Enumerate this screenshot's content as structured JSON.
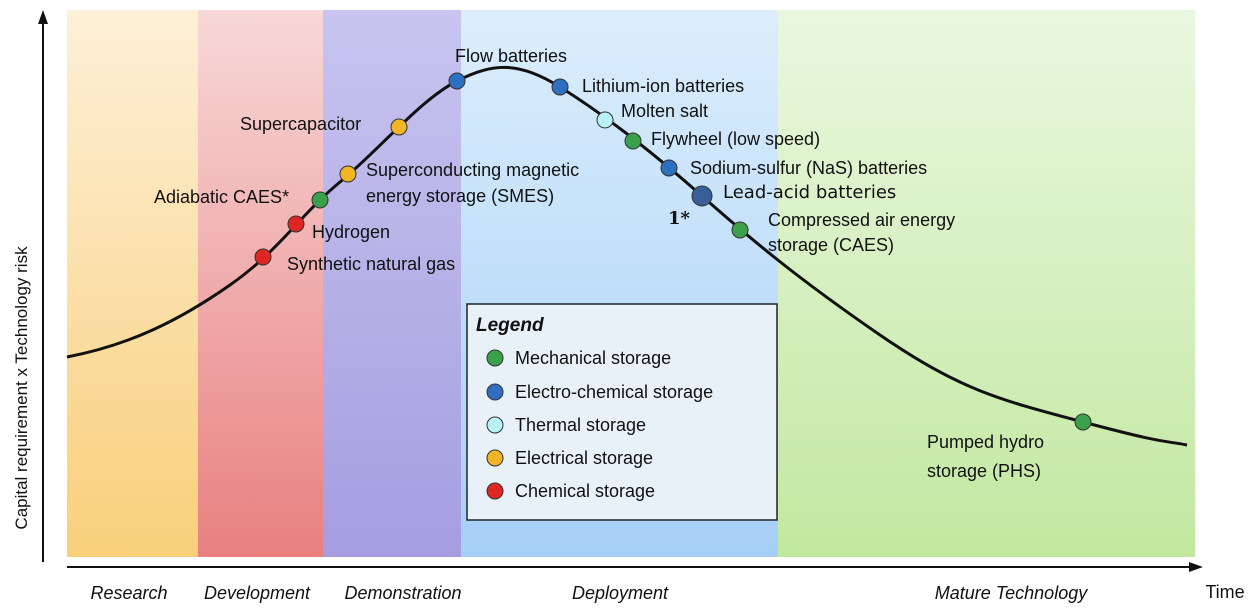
{
  "axes": {
    "y_label": "Capital requirement x Technology risk",
    "x_label": "Time"
  },
  "phases": [
    "Research",
    "Development",
    "Demonstration",
    "Deployment",
    "Mature Technology"
  ],
  "technologies": [
    {
      "label": [
        "Flow batteries"
      ]
    },
    {
      "label": [
        "Lithium-ion batteries"
      ]
    },
    {
      "label": [
        "Molten salt"
      ]
    },
    {
      "label": [
        "Flywheel (low speed)"
      ]
    },
    {
      "label": [
        "Sodium-sulfur (NaS) batteries"
      ]
    },
    {
      "label": [
        "Lead-acid batteries"
      ],
      "note": "1*"
    },
    {
      "label": [
        "Compressed air energy",
        "storage (CAES)"
      ]
    },
    {
      "label": [
        "Supercapacitor"
      ]
    },
    {
      "label": [
        "Superconducting magnetic",
        "energy storage (SMES)"
      ]
    },
    {
      "label": [
        "Adiabatic CAES*"
      ]
    },
    {
      "label": [
        "Hydrogen"
      ]
    },
    {
      "label": [
        "Synthetic natural gas"
      ]
    },
    {
      "label": [
        "Pumped hydro",
        "storage (PHS)"
      ]
    }
  ],
  "legend": {
    "title": "Legend",
    "items": [
      "Mechanical storage",
      "Electro-chemical storage",
      "Thermal storage",
      "Electrical storage",
      "Chemical storage"
    ]
  }
}
